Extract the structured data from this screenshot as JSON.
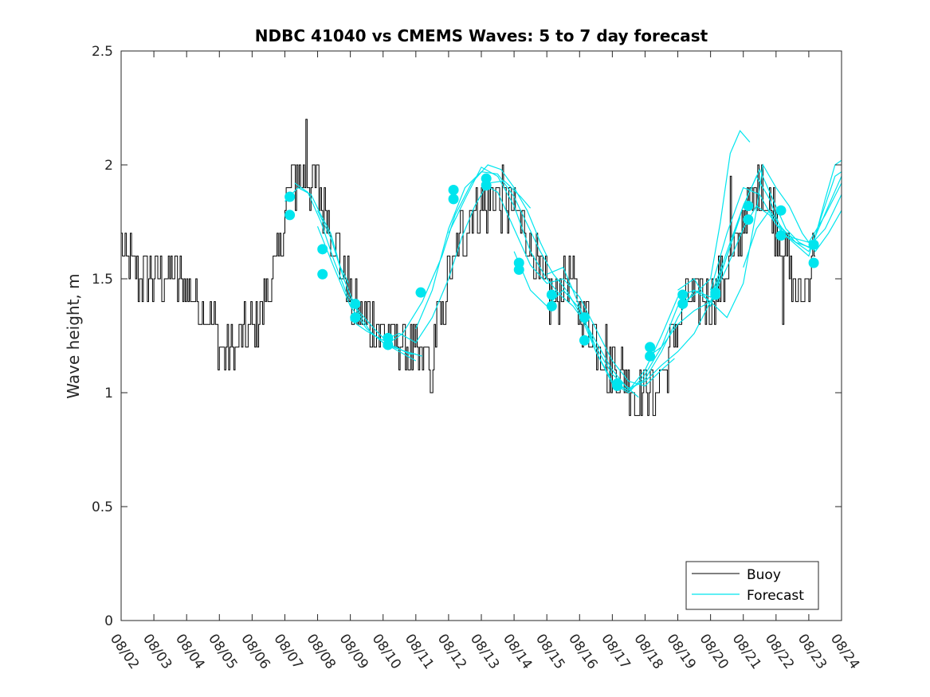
{
  "chart_data": {
    "type": "line",
    "title": "NDBC 41040 vs CMEMS Waves: 5 to 7 day forecast",
    "xlabel": "",
    "ylabel": "Wave height, m",
    "xlim": [
      0,
      22
    ],
    "ylim": [
      0,
      2.5
    ],
    "yticks": [
      0,
      0.5,
      1,
      1.5,
      2,
      2.5
    ],
    "ytick_labels": [
      "0",
      "0.5",
      "1",
      "1.5",
      "2",
      "2.5"
    ],
    "xtick_labels": [
      "08/02",
      "08/03",
      "08/04",
      "08/05",
      "08/06",
      "08/07",
      "08/08",
      "08/09",
      "08/10",
      "08/11",
      "08/12",
      "08/13",
      "08/14",
      "08/15",
      "08/16",
      "08/17",
      "08/18",
      "08/19",
      "08/20",
      "08/21",
      "08/22",
      "08/23",
      "08/24"
    ],
    "legend": {
      "position": "bottom-right",
      "entries": [
        "Buoy",
        "Forecast"
      ]
    },
    "colors": {
      "buoy": "#000000",
      "forecast": "#00e5ee",
      "axes": "#262626"
    },
    "buoy_anchors": [
      [
        0.0,
        1.62
      ],
      [
        0.5,
        1.52
      ],
      [
        1.0,
        1.5
      ],
      [
        1.5,
        1.53
      ],
      [
        2.0,
        1.45
      ],
      [
        2.5,
        1.38
      ],
      [
        2.8,
        1.28
      ],
      [
        3.0,
        1.22
      ],
      [
        3.3,
        1.17
      ],
      [
        3.6,
        1.2
      ],
      [
        3.9,
        1.26
      ],
      [
        4.2,
        1.35
      ],
      [
        4.5,
        1.45
      ],
      [
        4.8,
        1.6
      ],
      [
        5.0,
        1.8
      ],
      [
        5.2,
        1.92
      ],
      [
        5.5,
        1.95
      ],
      [
        5.8,
        1.93
      ],
      [
        6.0,
        1.9
      ],
      [
        6.2,
        1.82
      ],
      [
        6.5,
        1.68
      ],
      [
        6.8,
        1.52
      ],
      [
        7.0,
        1.42
      ],
      [
        7.3,
        1.35
      ],
      [
        7.6,
        1.3
      ],
      [
        8.0,
        1.27
      ],
      [
        8.3,
        1.23
      ],
      [
        8.6,
        1.2
      ],
      [
        8.9,
        1.15
      ],
      [
        9.2,
        1.14
      ],
      [
        9.5,
        1.22
      ],
      [
        9.8,
        1.35
      ],
      [
        10.0,
        1.5
      ],
      [
        10.3,
        1.65
      ],
      [
        10.6,
        1.78
      ],
      [
        11.0,
        1.82
      ],
      [
        11.5,
        1.85
      ],
      [
        12.0,
        1.8
      ],
      [
        12.3,
        1.72
      ],
      [
        12.6,
        1.6
      ],
      [
        12.9,
        1.45
      ],
      [
        13.2,
        1.38
      ],
      [
        13.5,
        1.5
      ],
      [
        13.8,
        1.48
      ],
      [
        14.0,
        1.38
      ],
      [
        14.3,
        1.3
      ],
      [
        14.6,
        1.22
      ],
      [
        15.0,
        1.12
      ],
      [
        15.4,
        1.06
      ],
      [
        15.8,
        1.04
      ],
      [
        16.2,
        1.02
      ],
      [
        16.6,
        1.1
      ],
      [
        16.9,
        1.25
      ],
      [
        17.2,
        1.38
      ],
      [
        17.6,
        1.43
      ],
      [
        18.0,
        1.42
      ],
      [
        18.4,
        1.5
      ],
      [
        18.8,
        1.65
      ],
      [
        19.1,
        1.8
      ],
      [
        19.4,
        1.9
      ],
      [
        19.8,
        1.82
      ],
      [
        20.2,
        1.65
      ],
      [
        20.5,
        1.48
      ],
      [
        20.8,
        1.42
      ],
      [
        21.0,
        1.55
      ],
      [
        21.2,
        1.7
      ]
    ],
    "buoy_spikes": [
      [
        5.65,
        2.2
      ],
      [
        9.45,
        1.0
      ],
      [
        14.85,
        1.0
      ],
      [
        15.7,
        0.9
      ],
      [
        16.25,
        0.9
      ],
      [
        20.2,
        1.3
      ],
      [
        18.6,
        1.95
      ],
      [
        19.55,
        2.0
      ]
    ],
    "forecast_series": [
      {
        "name": "Forecast",
        "points": [
          [
            5.0,
            1.84
          ],
          [
            5.4,
            1.9
          ],
          [
            5.8,
            1.87
          ],
          [
            6.1,
            1.78
          ],
          [
            6.4,
            1.7
          ],
          [
            6.7,
            1.55
          ],
          [
            6.95,
            1.48
          ]
        ]
      },
      {
        "name": "Forecast",
        "points": [
          [
            5.3,
            1.92
          ],
          [
            5.7,
            1.88
          ],
          [
            6.1,
            1.75
          ],
          [
            6.5,
            1.58
          ],
          [
            6.9,
            1.43
          ],
          [
            7.3,
            1.35
          ],
          [
            7.8,
            1.27
          ],
          [
            8.3,
            1.2
          ],
          [
            8.7,
            1.18
          ],
          [
            9.2,
            1.16
          ]
        ]
      },
      {
        "name": "Forecast",
        "points": [
          [
            6.0,
            1.8
          ],
          [
            6.4,
            1.68
          ],
          [
            6.8,
            1.5
          ],
          [
            7.2,
            1.36
          ],
          [
            7.6,
            1.27
          ],
          [
            8.0,
            1.22
          ],
          [
            8.4,
            1.2
          ],
          [
            8.8,
            1.17
          ],
          [
            9.0,
            1.17
          ]
        ]
      },
      {
        "name": "Forecast",
        "points": [
          [
            6.0,
            1.73
          ],
          [
            6.5,
            1.55
          ],
          [
            7.0,
            1.38
          ],
          [
            7.5,
            1.28
          ],
          [
            8.0,
            1.22
          ],
          [
            8.5,
            1.18
          ],
          [
            9.0,
            1.14
          ]
        ]
      },
      {
        "name": "Forecast",
        "points": [
          [
            7.0,
            1.32
          ],
          [
            7.5,
            1.27
          ],
          [
            8.0,
            1.23
          ],
          [
            8.5,
            1.26
          ],
          [
            9.0,
            1.22
          ],
          [
            9.5,
            1.33
          ],
          [
            10.0,
            1.5
          ],
          [
            10.4,
            1.68
          ],
          [
            10.8,
            1.82
          ],
          [
            11.2,
            1.92
          ],
          [
            11.7,
            1.93
          ],
          [
            12.2,
            1.86
          ],
          [
            12.5,
            1.81
          ]
        ]
      },
      {
        "name": "Forecast",
        "points": [
          [
            8.0,
            1.2
          ],
          [
            8.6,
            1.26
          ],
          [
            9.2,
            1.4
          ],
          [
            9.8,
            1.6
          ],
          [
            10.2,
            1.78
          ],
          [
            10.7,
            1.92
          ],
          [
            11.2,
            2.0
          ],
          [
            11.6,
            1.98
          ],
          [
            12.0,
            1.9
          ],
          [
            12.4,
            1.8
          ],
          [
            12.8,
            1.66
          ],
          [
            13.0,
            1.6
          ]
        ]
      },
      {
        "name": "Forecast",
        "points": [
          [
            9.0,
            1.28
          ],
          [
            9.5,
            1.45
          ],
          [
            10.0,
            1.72
          ],
          [
            10.5,
            1.9
          ],
          [
            11.0,
            1.97
          ],
          [
            11.5,
            1.96
          ],
          [
            12.0,
            1.86
          ],
          [
            12.4,
            1.74
          ],
          [
            12.8,
            1.62
          ],
          [
            13.2,
            1.52
          ],
          [
            13.6,
            1.45
          ],
          [
            14.0,
            1.35
          ]
        ]
      },
      {
        "name": "Forecast",
        "points": [
          [
            10.0,
            1.7
          ],
          [
            10.5,
            1.85
          ],
          [
            11.0,
            1.99
          ],
          [
            11.5,
            1.95
          ],
          [
            12.0,
            1.82
          ],
          [
            12.5,
            1.62
          ],
          [
            13.0,
            1.5
          ],
          [
            13.4,
            1.43
          ],
          [
            13.8,
            1.38
          ],
          [
            14.2,
            1.3
          ],
          [
            14.6,
            1.2
          ],
          [
            15.0,
            1.1
          ],
          [
            15.4,
            1.03
          ],
          [
            15.8,
            0.98
          ]
        ]
      },
      {
        "name": "Forecast",
        "points": [
          [
            11.0,
            1.92
          ],
          [
            11.5,
            1.88
          ],
          [
            12.0,
            1.72
          ],
          [
            12.5,
            1.56
          ],
          [
            13.0,
            1.48
          ],
          [
            13.5,
            1.5
          ],
          [
            14.0,
            1.42
          ],
          [
            14.5,
            1.28
          ],
          [
            15.0,
            1.14
          ],
          [
            15.5,
            1.05
          ],
          [
            16.0,
            1.03
          ],
          [
            16.5,
            1.1
          ],
          [
            16.9,
            1.15
          ]
        ]
      },
      {
        "name": "Forecast",
        "points": [
          [
            12.0,
            1.62
          ],
          [
            12.5,
            1.45
          ],
          [
            13.0,
            1.38
          ],
          [
            13.5,
            1.45
          ],
          [
            14.0,
            1.37
          ],
          [
            14.5,
            1.2
          ],
          [
            15.0,
            1.08
          ],
          [
            15.5,
            1.02
          ],
          [
            16.0,
            1.05
          ],
          [
            16.5,
            1.12
          ],
          [
            17.0,
            1.18
          ],
          [
            17.5,
            1.26
          ],
          [
            18.0,
            1.4
          ],
          [
            18.5,
            1.6
          ],
          [
            18.9,
            1.77
          ]
        ]
      },
      {
        "name": "Forecast",
        "points": [
          [
            13.0,
            1.52
          ],
          [
            13.5,
            1.55
          ],
          [
            14.0,
            1.38
          ],
          [
            14.5,
            1.18
          ],
          [
            15.0,
            1.04
          ],
          [
            15.5,
            1.01
          ],
          [
            16.0,
            1.06
          ],
          [
            16.5,
            1.18
          ],
          [
            17.0,
            1.33
          ],
          [
            17.5,
            1.45
          ],
          [
            18.0,
            1.4
          ],
          [
            18.5,
            1.55
          ],
          [
            19.0,
            1.72
          ],
          [
            19.4,
            1.82
          ],
          [
            19.8,
            1.78
          ],
          [
            20.2,
            1.7
          ],
          [
            20.6,
            1.66
          ],
          [
            21.0,
            1.64
          ],
          [
            21.5,
            1.72
          ],
          [
            22.0,
            1.87
          ]
        ]
      },
      {
        "name": "Forecast",
        "points": [
          [
            14.0,
            1.35
          ],
          [
            14.5,
            1.18
          ],
          [
            15.0,
            1.05
          ],
          [
            15.5,
            1.01
          ],
          [
            16.0,
            1.1
          ],
          [
            16.5,
            1.25
          ],
          [
            17.0,
            1.42
          ],
          [
            17.5,
            1.45
          ],
          [
            18.0,
            1.42
          ],
          [
            18.5,
            1.62
          ],
          [
            19.0,
            1.82
          ],
          [
            19.4,
            1.95
          ],
          [
            19.8,
            1.85
          ],
          [
            20.2,
            1.7
          ],
          [
            20.6,
            1.65
          ],
          [
            21.0,
            1.6
          ],
          [
            21.4,
            1.78
          ],
          [
            21.8,
            1.95
          ],
          [
            22.0,
            1.97
          ]
        ]
      },
      {
        "name": "Forecast",
        "points": [
          [
            15.0,
            1.04
          ],
          [
            15.5,
            1.0
          ],
          [
            16.0,
            1.08
          ],
          [
            16.5,
            1.2
          ],
          [
            17.0,
            1.38
          ],
          [
            17.5,
            1.43
          ],
          [
            18.0,
            1.5
          ],
          [
            18.3,
            1.75
          ],
          [
            18.6,
            2.05
          ],
          [
            18.9,
            2.15
          ],
          [
            19.2,
            2.1
          ]
        ]
      },
      {
        "name": "Forecast",
        "points": [
          [
            16.0,
            1.15
          ],
          [
            16.5,
            1.2
          ],
          [
            17.0,
            1.3
          ],
          [
            17.5,
            1.36
          ],
          [
            18.0,
            1.4
          ],
          [
            18.5,
            1.33
          ],
          [
            19.0,
            1.48
          ],
          [
            19.4,
            1.8
          ],
          [
            19.6,
            2.0
          ],
          [
            20.0,
            1.9
          ],
          [
            20.4,
            1.82
          ],
          [
            20.8,
            1.7
          ],
          [
            21.2,
            1.62
          ],
          [
            21.6,
            1.7
          ],
          [
            22.0,
            1.8
          ]
        ]
      },
      {
        "name": "Forecast",
        "points": [
          [
            17.0,
            1.45
          ],
          [
            17.5,
            1.5
          ],
          [
            18.0,
            1.38
          ],
          [
            18.5,
            1.6
          ],
          [
            19.0,
            1.82
          ],
          [
            19.5,
            1.98
          ],
          [
            19.9,
            1.85
          ],
          [
            20.3,
            1.72
          ],
          [
            20.7,
            1.66
          ],
          [
            21.1,
            1.63
          ],
          [
            21.5,
            1.85
          ],
          [
            21.8,
            2.0
          ],
          [
            22.0,
            2.02
          ]
        ]
      },
      {
        "name": "Forecast",
        "points": [
          [
            18.0,
            1.45
          ],
          [
            18.5,
            1.7
          ],
          [
            19.0,
            1.9
          ],
          [
            19.5,
            1.87
          ],
          [
            20.0,
            1.74
          ],
          [
            20.5,
            1.68
          ],
          [
            21.0,
            1.66
          ],
          [
            21.5,
            1.78
          ],
          [
            22.0,
            1.92
          ]
        ]
      },
      {
        "name": "Forecast",
        "points": [
          [
            19.0,
            1.55
          ],
          [
            19.4,
            1.72
          ],
          [
            19.8,
            1.8
          ],
          [
            20.2,
            1.72
          ],
          [
            20.6,
            1.66
          ],
          [
            21.0,
            1.62
          ],
          [
            21.3,
            1.72
          ],
          [
            21.6,
            1.82
          ],
          [
            22.0,
            1.95
          ]
        ]
      }
    ],
    "forecast_markers": [
      [
        5.15,
        1.86
      ],
      [
        5.15,
        1.78
      ],
      [
        6.15,
        1.63
      ],
      [
        6.15,
        1.52
      ],
      [
        7.15,
        1.39
      ],
      [
        7.15,
        1.33
      ],
      [
        8.15,
        1.24
      ],
      [
        8.15,
        1.21
      ],
      [
        9.15,
        1.44
      ],
      [
        10.15,
        1.89
      ],
      [
        10.15,
        1.85
      ],
      [
        11.15,
        1.94
      ],
      [
        11.15,
        1.91
      ],
      [
        12.15,
        1.57
      ],
      [
        12.15,
        1.54
      ],
      [
        13.15,
        1.43
      ],
      [
        13.15,
        1.38
      ],
      [
        14.15,
        1.33
      ],
      [
        14.15,
        1.23
      ],
      [
        15.15,
        1.04
      ],
      [
        15.15,
        1.03
      ],
      [
        16.15,
        1.2
      ],
      [
        16.15,
        1.16
      ],
      [
        17.15,
        1.43
      ],
      [
        17.15,
        1.39
      ],
      [
        18.15,
        1.44
      ],
      [
        18.15,
        1.43
      ],
      [
        19.15,
        1.82
      ],
      [
        19.15,
        1.76
      ],
      [
        20.15,
        1.8
      ],
      [
        20.15,
        1.69
      ],
      [
        21.15,
        1.65
      ],
      [
        21.15,
        1.57
      ]
    ]
  }
}
